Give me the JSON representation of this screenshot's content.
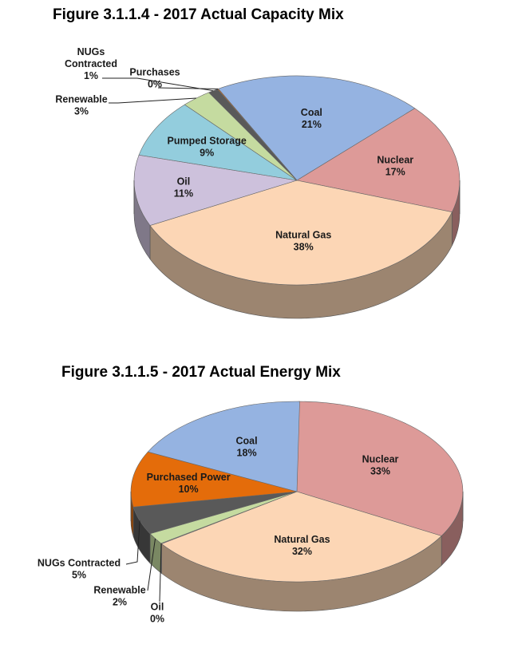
{
  "chart_data": [
    {
      "type": "pie",
      "title": "Figure 3.1.1.4 - 2017 Actual Capacity Mix",
      "slices": [
        {
          "label": "Coal",
          "value": 21,
          "value_label": "21%",
          "color": "#95b3e1"
        },
        {
          "label": "Nuclear",
          "value": 17,
          "value_label": "17%",
          "color": "#dd9a98"
        },
        {
          "label": "Natural Gas",
          "value": 38,
          "value_label": "38%",
          "color": "#fcd6b5"
        },
        {
          "label": "Oil",
          "value": 11,
          "value_label": "11%",
          "color": "#cdc1dc"
        },
        {
          "label": "Pumped Storage",
          "value": 9,
          "value_label": "9%",
          "color": "#93cddd"
        },
        {
          "label": "Renewable",
          "value": 3,
          "value_label": "3%",
          "color": "#c5dba0"
        },
        {
          "label": "NUGs Contracted",
          "value": 1,
          "value_label": "1%",
          "color": "#595959"
        },
        {
          "label": "Purchases",
          "value": 0,
          "value_label": "0%",
          "color": "#e46c0a"
        }
      ]
    },
    {
      "type": "pie",
      "title": "Figure 3.1.1.5 - 2017 Actual Energy Mix",
      "slices": [
        {
          "label": "Nuclear",
          "value": 33,
          "value_label": "33%",
          "color": "#dd9a98"
        },
        {
          "label": "Natural Gas",
          "value": 32,
          "value_label": "32%",
          "color": "#fcd6b5"
        },
        {
          "label": "Oil",
          "value": 0,
          "value_label": "0%",
          "color": "#cdc1dc"
        },
        {
          "label": "Renewable",
          "value": 2,
          "value_label": "2%",
          "color": "#c5dba0"
        },
        {
          "label": "NUGs Contracted",
          "value": 5,
          "value_label": "5%",
          "color": "#595959"
        },
        {
          "label": "Purchased Power",
          "value": 10,
          "value_label": "10%",
          "color": "#e46c0a"
        },
        {
          "label": "Coal",
          "value": 18,
          "value_label": "18%",
          "color": "#95b3e1"
        }
      ]
    }
  ]
}
